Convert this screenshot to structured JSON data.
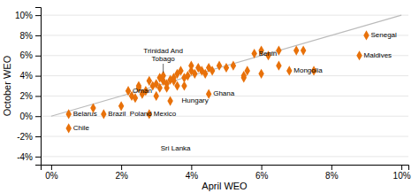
{
  "chart_data": {
    "type": "scatter",
    "xlabel": "April WEO",
    "ylabel": "October WEO",
    "series": [
      {
        "type": "line",
        "color": "#BBBBBB",
        "line_style": "solid",
        "x": [
          0,
          10
        ],
        "values": [
          0,
          10
        ]
      },
      {
        "type": "scatter",
        "color": "#E8710A",
        "marker": "diamond",
        "x": [
          0.5,
          0.5,
          1.2,
          1.5,
          2.0,
          2.2,
          2.3,
          2.4,
          2.5,
          2.5,
          2.6,
          2.7,
          2.8,
          2.8,
          2.9,
          3.0,
          3.0,
          3.1,
          3.1,
          3.2,
          3.2,
          3.3,
          3.3,
          3.4,
          3.4,
          3.5,
          3.5,
          3.6,
          3.6,
          3.7,
          3.8,
          3.8,
          3.9,
          4.0,
          4.0,
          4.1,
          4.2,
          4.3,
          4.4,
          4.5,
          4.5,
          4.6,
          4.8,
          5.0,
          5.2,
          5.5,
          5.5,
          5.6,
          5.8,
          6.0,
          6.0,
          6.2,
          6.5,
          6.5,
          6.8,
          7.0,
          7.2,
          7.5,
          8.8,
          9.0
        ],
        "values": [
          0.2,
          -1.2,
          0.8,
          0.2,
          1.0,
          2.5,
          2.0,
          1.8,
          3.0,
          2.8,
          2.2,
          2.5,
          0.2,
          3.5,
          3.0,
          2.0,
          3.2,
          2.8,
          3.8,
          3.5,
          4.0,
          2.8,
          3.2,
          3.6,
          1.5,
          3.5,
          3.8,
          3.0,
          4.2,
          4.5,
          3.0,
          3.8,
          4.0,
          4.5,
          5.0,
          4.2,
          4.8,
          4.5,
          4.2,
          4.8,
          2.2,
          4.5,
          5.0,
          4.8,
          5.0,
          4.0,
          3.8,
          4.5,
          6.2,
          6.5,
          4.2,
          6.0,
          6.5,
          5.0,
          4.5,
          6.5,
          6.5,
          4.5,
          6.0,
          8.0
        ]
      }
    ],
    "annotations": [
      {
        "text": "Belarus",
        "x": 0.5,
        "y": 0.2
      },
      {
        "text": "Chile",
        "x": 0.5,
        "y": -1.2
      },
      {
        "text": "Brazil",
        "x": 1.5,
        "y": 0.2
      },
      {
        "text": "Oman",
        "x": 2.2,
        "y": 2.5
      },
      {
        "text": "Mexico",
        "x": 2.8,
        "y": 0.2
      },
      {
        "text": "Poland",
        "x": 3.0,
        "y": 0.2
      },
      {
        "text": "Sri Lanka",
        "x": 3.0,
        "y": -3.2
      },
      {
        "text": "Hungary",
        "x": 3.6,
        "y": 1.5
      },
      {
        "text": "Ghana",
        "x": 4.5,
        "y": 2.2
      },
      {
        "text": "Benin",
        "x": 5.8,
        "y": 6.2
      },
      {
        "text": "Mongolia",
        "x": 6.8,
        "y": 4.5
      },
      {
        "text": "Maldives",
        "x": 8.8,
        "y": 6.0
      },
      {
        "text": "Senegal",
        "x": 9.0,
        "y": 8.0
      },
      {
        "text": "Trinidad And\nTobago",
        "x": 3.2,
        "y": 4.05
      }
    ],
    "xlim": [
      -0.3,
      10.2
    ],
    "ylim": [
      -4.8,
      10.8
    ],
    "xticks": [
      {
        "value": 0,
        "label": "0%"
      },
      {
        "value": 2,
        "label": "2%"
      },
      {
        "value": 4,
        "label": "4%"
      },
      {
        "value": 6,
        "label": "6%"
      },
      {
        "value": 8,
        "label": "8%"
      },
      {
        "value": 10,
        "label": "10%"
      }
    ],
    "yticks": [
      {
        "value": -4,
        "label": "-4%"
      },
      {
        "value": -2,
        "label": "-2%"
      },
      {
        "value": 0,
        "label": "0%"
      },
      {
        "value": 2,
        "label": "2%"
      },
      {
        "value": 4,
        "label": "4%"
      },
      {
        "value": 6,
        "label": "6%"
      },
      {
        "value": 8,
        "label": "8%"
      },
      {
        "value": 10,
        "label": "10%"
      }
    ],
    "grid": true
  }
}
